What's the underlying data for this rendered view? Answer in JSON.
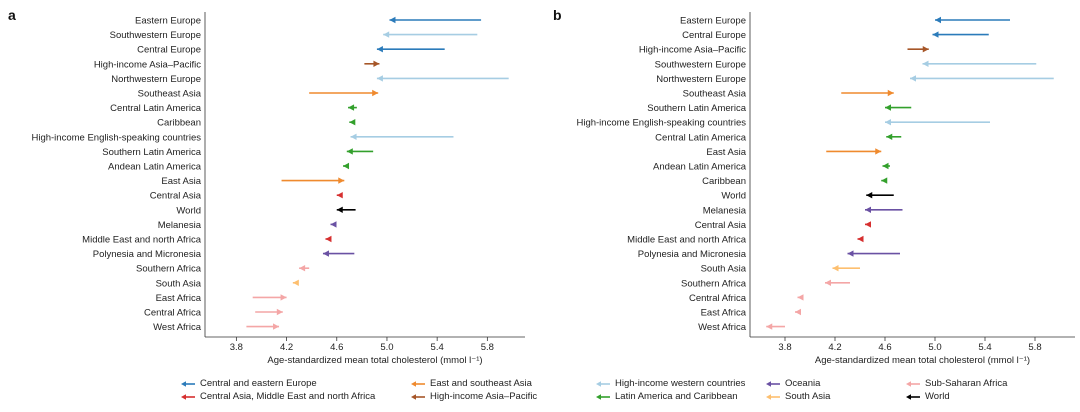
{
  "chart_data": [
    {
      "type": "arrow-dot",
      "panel_label": "a",
      "xlabel": "Age-standardized mean total cholesterol (mmol l⁻¹)",
      "xticks": [
        "3.8",
        "4.2",
        "4.6",
        "5.0",
        "5.4",
        "5.8"
      ],
      "xlim": [
        3.55,
        6.1
      ],
      "rows": [
        {
          "label": "Eastern Europe",
          "from": 5.75,
          "to": 5.02,
          "region": "Central and eastern Europe"
        },
        {
          "label": "Southwestern Europe",
          "from": 5.72,
          "to": 4.97,
          "region": "High-income western countries"
        },
        {
          "label": "Central Europe",
          "from": 5.46,
          "to": 4.92,
          "region": "Central and eastern Europe"
        },
        {
          "label": "High-income Asia–Pacific",
          "from": 4.82,
          "to": 4.94,
          "region": "High-income Asia–Pacific"
        },
        {
          "label": "Northwestern Europe",
          "from": 5.97,
          "to": 4.92,
          "region": "High-income western countries"
        },
        {
          "label": "Southeast Asia",
          "from": 4.38,
          "to": 4.93,
          "region": "East and southeast Asia"
        },
        {
          "label": "Central Latin America",
          "from": 4.76,
          "to": 4.69,
          "region": "Latin America and Caribbean"
        },
        {
          "label": "Caribbean",
          "from": 4.72,
          "to": 4.7,
          "region": "Latin America and Caribbean"
        },
        {
          "label": "High-income English-speaking countries",
          "from": 5.53,
          "to": 4.71,
          "region": "High-income western countries"
        },
        {
          "label": "Southern Latin America",
          "from": 4.89,
          "to": 4.68,
          "region": "Latin America and Caribbean"
        },
        {
          "label": "Andean Latin America",
          "from": 4.67,
          "to": 4.65,
          "region": "Latin America and Caribbean"
        },
        {
          "label": "East Asia",
          "from": 4.16,
          "to": 4.66,
          "region": "East and southeast Asia"
        },
        {
          "label": "Central Asia",
          "from": 4.64,
          "to": 4.6,
          "region": "Central Asia, Middle East and north Africa"
        },
        {
          "label": "World",
          "from": 4.75,
          "to": 4.6,
          "region": "World"
        },
        {
          "label": "Melanesia",
          "from": 4.58,
          "to": 4.55,
          "region": "Oceania"
        },
        {
          "label": "Middle East and north Africa",
          "from": 4.53,
          "to": 4.51,
          "region": "Central Asia, Middle East and north Africa"
        },
        {
          "label": "Polynesia and Micronesia",
          "from": 4.74,
          "to": 4.49,
          "region": "Oceania"
        },
        {
          "label": "Southern Africa",
          "from": 4.38,
          "to": 4.3,
          "region": "Sub-Saharan Africa"
        },
        {
          "label": "South Asia",
          "from": 4.27,
          "to": 4.25,
          "region": "South Asia"
        },
        {
          "label": "East Africa",
          "from": 3.93,
          "to": 4.2,
          "region": "Sub-Saharan Africa"
        },
        {
          "label": "Central Africa",
          "from": 3.95,
          "to": 4.17,
          "region": "Sub-Saharan Africa"
        },
        {
          "label": "West Africa",
          "from": 3.88,
          "to": 4.14,
          "region": "Sub-Saharan Africa"
        }
      ]
    },
    {
      "type": "arrow-dot",
      "panel_label": "b",
      "xlabel": "Age-standardized mean total cholesterol (mmol l⁻¹)",
      "xticks": [
        "3.8",
        "4.2",
        "4.6",
        "5.0",
        "5.4",
        "5.8"
      ],
      "xlim": [
        3.52,
        6.12
      ],
      "rows": [
        {
          "label": "Eastern Europe",
          "from": 5.6,
          "to": 5.0,
          "region": "Central and eastern Europe"
        },
        {
          "label": "Central Europe",
          "from": 5.43,
          "to": 4.98,
          "region": "Central and eastern Europe"
        },
        {
          "label": "High-income Asia–Pacific",
          "from": 4.78,
          "to": 4.95,
          "region": "High-income Asia–Pacific"
        },
        {
          "label": "Southwestern Europe",
          "from": 5.81,
          "to": 4.9,
          "region": "High-income western countries"
        },
        {
          "label": "Northwestern Europe",
          "from": 5.95,
          "to": 4.8,
          "region": "High-income western countries"
        },
        {
          "label": "Southeast Asia",
          "from": 4.25,
          "to": 4.67,
          "region": "East and southeast Asia"
        },
        {
          "label": "Southern Latin America",
          "from": 4.81,
          "to": 4.6,
          "region": "Latin America and Caribbean"
        },
        {
          "label": "High-income English-speaking countries",
          "from": 5.44,
          "to": 4.6,
          "region": "High-income western countries"
        },
        {
          "label": "Central Latin America",
          "from": 4.73,
          "to": 4.61,
          "region": "Latin America and Caribbean"
        },
        {
          "label": "East Asia",
          "from": 4.13,
          "to": 4.57,
          "region": "East and southeast Asia"
        },
        {
          "label": "Andean Latin America",
          "from": 4.64,
          "to": 4.58,
          "region": "Latin America and Caribbean"
        },
        {
          "label": "Caribbean",
          "from": 4.61,
          "to": 4.57,
          "region": "Latin America and Caribbean"
        },
        {
          "label": "World",
          "from": 4.67,
          "to": 4.45,
          "region": "World"
        },
        {
          "label": "Melanesia",
          "from": 4.74,
          "to": 4.44,
          "region": "Oceania"
        },
        {
          "label": "Central Asia",
          "from": 4.48,
          "to": 4.44,
          "region": "Central Asia, Middle East and north Africa"
        },
        {
          "label": "Middle East and north Africa",
          "from": 4.41,
          "to": 4.38,
          "region": "Central Asia, Middle East and north Africa"
        },
        {
          "label": "Polynesia and Micronesia",
          "from": 4.72,
          "to": 4.3,
          "region": "Oceania"
        },
        {
          "label": "South Asia",
          "from": 4.4,
          "to": 4.18,
          "region": "South Asia"
        },
        {
          "label": "Southern Africa",
          "from": 4.32,
          "to": 4.12,
          "region": "Sub-Saharan Africa"
        },
        {
          "label": "Central Africa",
          "from": 3.93,
          "to": 3.9,
          "region": "Sub-Saharan Africa"
        },
        {
          "label": "East Africa",
          "from": 3.9,
          "to": 3.88,
          "region": "Sub-Saharan Africa"
        },
        {
          "label": "West Africa",
          "from": 3.8,
          "to": 3.65,
          "region": "Sub-Saharan Africa"
        }
      ]
    }
  ],
  "legend": [
    {
      "label": "Central and eastern Europe",
      "color": "#2b7bba"
    },
    {
      "label": "East and southeast Asia",
      "color": "#ef8a2e"
    },
    {
      "label": "High-income western countries",
      "color": "#a6cde3"
    },
    {
      "label": "Oceania",
      "color": "#6a51a3"
    },
    {
      "label": "Sub-Saharan Africa",
      "color": "#f4a6a6"
    },
    {
      "label": "Central Asia, Middle East and north Africa",
      "color": "#d62f2f"
    },
    {
      "label": "High-income Asia–Pacific",
      "color": "#a65628"
    },
    {
      "label": "Latin America and Caribbean",
      "color": "#33a02c"
    },
    {
      "label": "South Asia",
      "color": "#fdbf6f"
    },
    {
      "label": "World",
      "color": "#000000"
    }
  ]
}
